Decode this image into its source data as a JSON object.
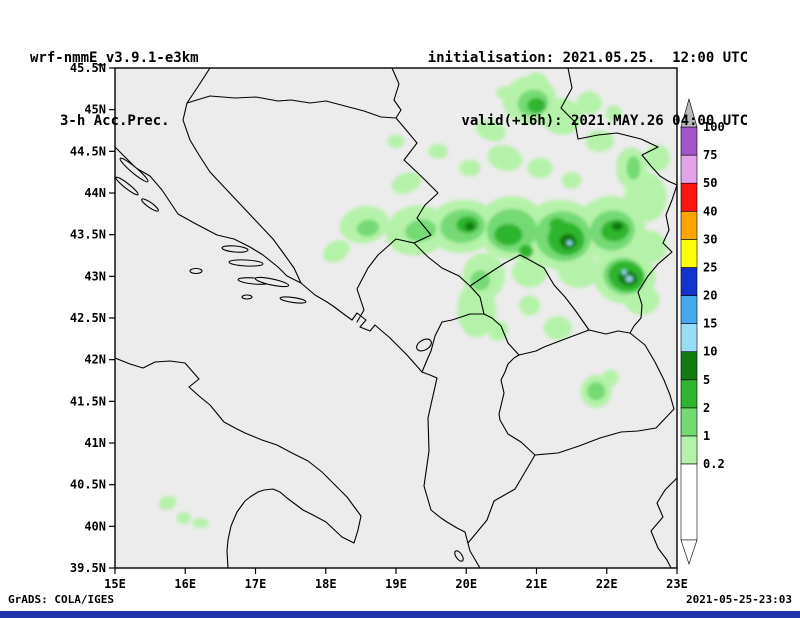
{
  "header": {
    "model": "wrf-nmmE_v3.9.1-e3km",
    "product": "3-h Acc.Prec.",
    "init_line": "initialisation: 2021.05.25.  12:00 UTC",
    "valid_line": "valid(+16h): 2021.MAY.26 04:00 UTC"
  },
  "footer": {
    "left": "GrADS: COLA/IGES",
    "right": "2021-05-25-23:03"
  },
  "chart_data": {
    "type": "heatmap",
    "title": "3-h Acc.Prec.",
    "subtitle": "wrf-nmmE_v3.9.1-e3km precipitation forecast map",
    "x_axis": {
      "range": [
        15,
        23
      ],
      "ticks": [
        {
          "label": "15E",
          "value": 15
        },
        {
          "label": "16E",
          "value": 16
        },
        {
          "label": "17E",
          "value": 17
        },
        {
          "label": "18E",
          "value": 18
        },
        {
          "label": "19E",
          "value": 19
        },
        {
          "label": "20E",
          "value": 20
        },
        {
          "label": "21E",
          "value": 21
        },
        {
          "label": "22E",
          "value": 22
        },
        {
          "label": "23E",
          "value": 23
        }
      ]
    },
    "y_axis": {
      "range": [
        39.5,
        45.5
      ],
      "ticks": [
        {
          "label": "45.5N",
          "value": 45.5
        },
        {
          "label": "45N",
          "value": 45
        },
        {
          "label": "44.5N",
          "value": 44.5
        },
        {
          "label": "44N",
          "value": 44
        },
        {
          "label": "43.5N",
          "value": 43.5
        },
        {
          "label": "43N",
          "value": 43
        },
        {
          "label": "42.5N",
          "value": 42.5
        },
        {
          "label": "42N",
          "value": 42
        },
        {
          "label": "41.5N",
          "value": 41.5
        },
        {
          "label": "41N",
          "value": 41
        },
        {
          "label": "40.5N",
          "value": 40.5
        },
        {
          "label": "40N",
          "value": 40
        },
        {
          "label": "39.5N",
          "value": 39.5
        }
      ]
    },
    "legend": {
      "position": "right",
      "over_color": "#b9b9b9",
      "under_color": "#ffffff",
      "levels": [
        {
          "value": "0.2",
          "color": "#b5f2a9"
        },
        {
          "value": "1",
          "color": "#74da74"
        },
        {
          "value": "2",
          "color": "#2fb52f"
        },
        {
          "value": "5",
          "color": "#117a11"
        },
        {
          "value": "10",
          "color": "#99dcf5"
        },
        {
          "value": "15",
          "color": "#47a8f0"
        },
        {
          "value": "20",
          "color": "#1433cc"
        },
        {
          "value": "25",
          "color": "#ffff00"
        },
        {
          "value": "30",
          "color": "#ffa400"
        },
        {
          "value": "40",
          "color": "#fb1510"
        },
        {
          "value": "50",
          "color": "#e3a3e8"
        },
        {
          "value": "75",
          "color": "#a256cb"
        },
        {
          "value": "100",
          "color": null
        }
      ]
    },
    "palette": {
      "0.2": "#b5f2a9",
      "1": "#74da74",
      "2": "#2fb52f",
      "5": "#117a11",
      "10": "#99dcf5"
    },
    "cells_format": "[lon_deg_E, lat_deg_N, rx_deg, ry_deg, rotation_deg, level_mm]",
    "cells": [
      [
        20.9,
        45.12,
        0.38,
        0.28,
        -15,
        "0.2"
      ],
      [
        21.35,
        44.92,
        0.3,
        0.22,
        10,
        "0.2"
      ],
      [
        21.75,
        45.08,
        0.18,
        0.14,
        0,
        "0.2"
      ],
      [
        22.1,
        44.95,
        0.12,
        0.1,
        0,
        "0.2"
      ],
      [
        20.35,
        44.75,
        0.22,
        0.12,
        20,
        "0.2"
      ],
      [
        21.0,
        45.35,
        0.15,
        0.1,
        0,
        "0.2"
      ],
      [
        20.55,
        45.2,
        0.12,
        0.08,
        0,
        "0.2"
      ],
      [
        19.6,
        44.5,
        0.14,
        0.09,
        0,
        "0.2"
      ],
      [
        19.15,
        44.12,
        0.22,
        0.12,
        -20,
        "0.2"
      ],
      [
        19.0,
        44.62,
        0.12,
        0.08,
        0,
        "0.2"
      ],
      [
        20.55,
        44.42,
        0.25,
        0.15,
        15,
        "0.2"
      ],
      [
        21.9,
        44.62,
        0.2,
        0.13,
        0,
        "0.2"
      ],
      [
        22.35,
        44.3,
        0.22,
        0.25,
        0,
        "0.2"
      ],
      [
        22.72,
        44.42,
        0.18,
        0.16,
        0,
        "0.2"
      ],
      [
        22.55,
        43.95,
        0.3,
        0.3,
        0,
        "0.2"
      ],
      [
        22.2,
        43.78,
        0.2,
        0.15,
        0,
        "0.2"
      ],
      [
        18.55,
        43.62,
        0.35,
        0.22,
        -10,
        "0.2"
      ],
      [
        18.15,
        43.3,
        0.2,
        0.12,
        -30,
        "0.2"
      ],
      [
        19.3,
        43.55,
        0.45,
        0.3,
        -8,
        "0.2"
      ],
      [
        19.95,
        43.6,
        0.5,
        0.32,
        -5,
        "0.2"
      ],
      [
        20.65,
        43.58,
        0.5,
        0.38,
        0,
        "0.2"
      ],
      [
        21.35,
        43.5,
        0.55,
        0.42,
        8,
        "0.2"
      ],
      [
        22.05,
        43.58,
        0.5,
        0.38,
        -10,
        "0.2"
      ],
      [
        22.6,
        43.35,
        0.25,
        0.2,
        0,
        "0.2"
      ],
      [
        22.25,
        43.0,
        0.45,
        0.33,
        15,
        "0.2"
      ],
      [
        21.6,
        43.08,
        0.3,
        0.22,
        0,
        "0.2"
      ],
      [
        20.9,
        43.05,
        0.25,
        0.18,
        0,
        "0.2"
      ],
      [
        20.25,
        43.0,
        0.3,
        0.28,
        0,
        "0.2"
      ],
      [
        20.15,
        42.6,
        0.28,
        0.33,
        0,
        "0.2"
      ],
      [
        20.45,
        42.35,
        0.15,
        0.12,
        0,
        "0.2"
      ],
      [
        21.3,
        42.38,
        0.2,
        0.14,
        0,
        "0.2"
      ],
      [
        22.5,
        42.72,
        0.25,
        0.18,
        0,
        "0.2"
      ],
      [
        20.9,
        42.65,
        0.15,
        0.12,
        0,
        "0.2"
      ],
      [
        21.85,
        41.62,
        0.22,
        0.2,
        0,
        "0.2"
      ],
      [
        22.05,
        41.78,
        0.12,
        0.1,
        0,
        "0.2"
      ],
      [
        20.05,
        44.3,
        0.15,
        0.1,
        0,
        "0.2"
      ],
      [
        21.05,
        44.3,
        0.18,
        0.12,
        0,
        "0.2"
      ],
      [
        21.5,
        44.15,
        0.14,
        0.1,
        0,
        "0.2"
      ],
      [
        15.75,
        40.28,
        0.13,
        0.08,
        -20,
        "0.2"
      ],
      [
        15.98,
        40.1,
        0.1,
        0.07,
        0,
        "0.2"
      ],
      [
        16.22,
        40.04,
        0.12,
        0.06,
        0,
        "0.2"
      ],
      [
        20.95,
        45.08,
        0.22,
        0.16,
        -15,
        "1"
      ],
      [
        19.95,
        43.6,
        0.32,
        0.2,
        -5,
        "1"
      ],
      [
        20.65,
        43.55,
        0.36,
        0.26,
        0,
        "1"
      ],
      [
        21.38,
        43.48,
        0.4,
        0.3,
        8,
        "1"
      ],
      [
        22.08,
        43.55,
        0.32,
        0.24,
        -10,
        "1"
      ],
      [
        22.25,
        43.0,
        0.3,
        0.22,
        15,
        "1"
      ],
      [
        19.35,
        43.55,
        0.22,
        0.13,
        -8,
        "1"
      ],
      [
        22.38,
        44.3,
        0.1,
        0.14,
        0,
        "1"
      ],
      [
        21.85,
        41.62,
        0.13,
        0.11,
        0,
        "1"
      ],
      [
        18.6,
        43.58,
        0.16,
        0.1,
        -10,
        "1"
      ],
      [
        20.2,
        42.95,
        0.14,
        0.12,
        0,
        "1"
      ],
      [
        21.0,
        45.05,
        0.13,
        0.09,
        0,
        "2"
      ],
      [
        20.02,
        43.62,
        0.16,
        0.1,
        0,
        "2"
      ],
      [
        20.6,
        43.5,
        0.2,
        0.13,
        0,
        "2"
      ],
      [
        21.42,
        43.45,
        0.26,
        0.2,
        10,
        "2"
      ],
      [
        22.12,
        43.55,
        0.2,
        0.13,
        -10,
        "2"
      ],
      [
        22.28,
        43.0,
        0.26,
        0.18,
        15,
        "2"
      ],
      [
        21.3,
        43.62,
        0.12,
        0.08,
        0,
        "2"
      ],
      [
        20.85,
        43.3,
        0.1,
        0.08,
        0,
        "2"
      ],
      [
        21.45,
        43.42,
        0.12,
        0.09,
        10,
        "5"
      ],
      [
        22.3,
        42.98,
        0.14,
        0.09,
        15,
        "5"
      ],
      [
        20.05,
        43.6,
        0.07,
        0.05,
        0,
        "5"
      ],
      [
        22.15,
        43.6,
        0.08,
        0.05,
        0,
        "5"
      ],
      [
        22.32,
        42.97,
        0.05,
        0.035,
        0,
        "10"
      ],
      [
        21.47,
        43.4,
        0.04,
        0.03,
        0,
        "10"
      ],
      [
        22.25,
        43.05,
        0.035,
        0.03,
        0,
        "10"
      ]
    ]
  }
}
